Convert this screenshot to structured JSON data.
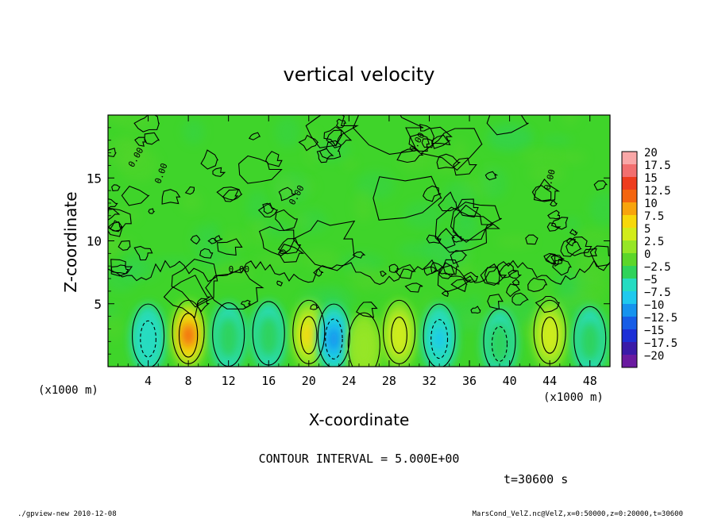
{
  "chart_data": {
    "type": "heatmap",
    "title": "vertical velocity",
    "xlabel": "X-coordinate",
    "ylabel": "Z-coordinate",
    "x_unit_left": "(x1000 m)",
    "x_unit_right": "(x1000 m)",
    "xlim": [
      0,
      50
    ],
    "ylim": [
      0,
      20
    ],
    "x_ticks": [
      "4",
      "8",
      "12",
      "16",
      "20",
      "24",
      "28",
      "32",
      "36",
      "40",
      "44",
      "48"
    ],
    "y_ticks": [
      "5",
      "10",
      "15"
    ],
    "contour_interval": "CONTOUR INTERVAL = 5.000E+00",
    "contour_label": "0.00",
    "time_label": "t=30600 s",
    "colorbar": {
      "labels": [
        "20",
        "17.5",
        "15",
        "12.5",
        "10",
        "7.5",
        "5",
        "2.5",
        "0",
        "−2.5",
        "−5",
        "−7.5",
        "−10",
        "−12.5",
        "−15",
        "−17.5",
        "−20"
      ],
      "colors": [
        "#f9a7a7",
        "#f26f6f",
        "#ee3c1e",
        "#f4650f",
        "#f8a40c",
        "#f7d80a",
        "#d2ec1a",
        "#96e626",
        "#5cd62a",
        "#2fd35a",
        "#25dcc2",
        "#1fc9ee",
        "#1693ee",
        "#175de6",
        "#1d2fd6",
        "#3a1aa8",
        "#6a1aa0"
      ]
    },
    "features": [
      {
        "x": 4,
        "z": 2.2,
        "w": -6
      },
      {
        "x": 8,
        "z": 2.5,
        "w": 12
      },
      {
        "x": 12,
        "z": 2.3,
        "w": -4
      },
      {
        "x": 16,
        "z": 2.4,
        "w": -4
      },
      {
        "x": 20,
        "z": 2.5,
        "w": 7
      },
      {
        "x": 22.5,
        "z": 2.2,
        "w": -9
      },
      {
        "x": 25.5,
        "z": 1.5,
        "w": 3
      },
      {
        "x": 29,
        "z": 2.5,
        "w": 6
      },
      {
        "x": 33,
        "z": 2.2,
        "w": -8
      },
      {
        "x": 39,
        "z": 1.8,
        "w": -5
      },
      {
        "x": 44,
        "z": 2.5,
        "w": 6
      },
      {
        "x": 48,
        "z": 2.0,
        "w": -3
      }
    ]
  },
  "footer": {
    "left": "./gpview-new  2010-12-08",
    "right": "MarsCond_VelZ.nc@VelZ,x=0:50000,z=0:20000,t=30600"
  }
}
